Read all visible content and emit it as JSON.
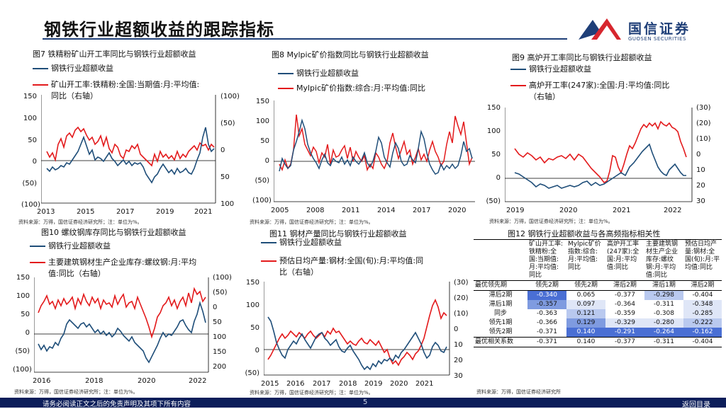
{
  "header": {
    "title": "钢铁行业超额收益的跟踪指标",
    "logo_text": "国信证券",
    "logo_sub": "GUOSEN SECURITIES"
  },
  "footer": {
    "disclaimer": "请务必阅读正文之后的免责声明及其项下所有内容",
    "page": "5",
    "back_label": "返回目录"
  },
  "source_note": "资料来源：万得，国信证券经济研究所；注：单位为%。",
  "source_note_fig12": "资料来源：万得，国信证券经济研究所",
  "colors": {
    "blue": "#1f4e79",
    "red": "#e31a1c",
    "navy": "#0c1e5a"
  },
  "charts": [
    {
      "id": "fig7",
      "title": "图7 铁精粉矿山开工率同比与钢铁行业超额收益",
      "legend": [
        "钢铁行业超额收益",
        "矿山开工率:铁精粉:全国:当期值:月:平均值:",
        "同比（右轴）"
      ],
      "y_left": [
        "150",
        "100",
        "50",
        "0",
        "(50)",
        "(100)"
      ],
      "y_right": [
        "(100)",
        "(50)",
        "0",
        "50",
        "100"
      ],
      "x_ticks": [
        "2013",
        "2015",
        "2017",
        "2019",
        "2021"
      ]
    },
    {
      "id": "fig8",
      "title": "图8 Mylpic矿价指数同比与钢铁行业超额收益",
      "legend": [
        "钢铁行业超额收益",
        "Mylpic矿价指数:综合:月:平均值:同比"
      ],
      "y_left": [
        "150",
        "100",
        "50",
        "0",
        "(50)",
        "(100)"
      ],
      "x_ticks": [
        "2005",
        "2008",
        "2011",
        "2014",
        "2017",
        "2020"
      ]
    },
    {
      "id": "fig9",
      "title": "图9 高炉开工率同比与钢铁行业超额收益",
      "legend": [
        "钢铁行业超额收益",
        "高炉开工率(247家):全国:月:平均值:同比",
        "（右轴）"
      ],
      "y_left": [
        "150",
        "100",
        "50",
        "0",
        "(50)"
      ],
      "y_right": [
        "(30)",
        "(20)",
        "(10)",
        "0",
        "10",
        "20",
        "30"
      ],
      "x_ticks": [
        "2019",
        "2020",
        "2021",
        "2022"
      ]
    },
    {
      "id": "fig10",
      "title": "图10 螺纹钢库存同比与钢铁行业超额收益",
      "legend": [
        "钢铁行业超额收益",
        "主要建筑钢材生产企业库存:螺纹钢:月:平均",
        "值:同比（右轴）"
      ],
      "y_left": [
        "150",
        "100",
        "50",
        "0",
        "(50)",
        "(100)"
      ],
      "y_right": [
        "(100)",
        "(50)",
        "0",
        "50",
        "100",
        "150",
        "200"
      ],
      "x_ticks": [
        "2016",
        "2018",
        "2020",
        "2022"
      ]
    },
    {
      "id": "fig11",
      "title": "图11 钢材产量同比与钢铁行业超额收益",
      "legend": [
        "钢铁行业超额收益",
        "预估日均产量:钢材:全国(旬):月:平均值:同",
        "比（右轴）"
      ],
      "y_left": [
        "150",
        "100",
        "50",
        "0",
        "(50)"
      ],
      "y_right": [
        "(30)",
        "(20)",
        "(10)",
        "0",
        "10",
        "20",
        "30"
      ],
      "x_ticks": [
        "2015",
        "2016",
        "2017",
        "2018",
        "2019",
        "2020",
        "2021"
      ]
    }
  ],
  "table": {
    "title": "图12 钢铁行业超额收益与各高频指标相关性",
    "columns": [
      "矿山开工率:铁精粉:全国:当期值:月:平均值:同比",
      "Mylpic矿价指数:综合:月:平均值:同比",
      "高炉开工率(247家):全国:月:平均值:同比",
      "主要建筑钢材生产企业库存:螺纹钢:月:平均值:同比",
      "预估日均产量:钢材:全国(旬):月:平均值:同比"
    ],
    "lead_label": "最优领先期",
    "lead": [
      "领先2期",
      "领先2期",
      "滞后2期",
      "滞后1期",
      "滞后2期"
    ],
    "rows": [
      {
        "label": "滞后2期",
        "values": [
          "-0.340",
          "0.065",
          "-0.377",
          "-0.298",
          "-0.404"
        ]
      },
      {
        "label": "滞后1期",
        "values": [
          "-0.357",
          "0.097",
          "-0.364",
          "-0.311",
          "-0.348"
        ]
      },
      {
        "label": "同步",
        "values": [
          "-0.363",
          "0.121",
          "-0.359",
          "-0.308",
          "-0.285"
        ]
      },
      {
        "label": "领先1期",
        "values": [
          "-0.366",
          "0.129",
          "-0.329",
          "-0.280",
          "-0.222"
        ]
      },
      {
        "label": "领先2期",
        "values": [
          "-0.371",
          "0.140",
          "-0.291",
          "-0.264",
          "-0.162"
        ]
      }
    ],
    "best_label": "最优相关系数",
    "best": [
      "-0.371",
      "0.140",
      "-0.377",
      "-0.311",
      "-0.404"
    ]
  }
}
